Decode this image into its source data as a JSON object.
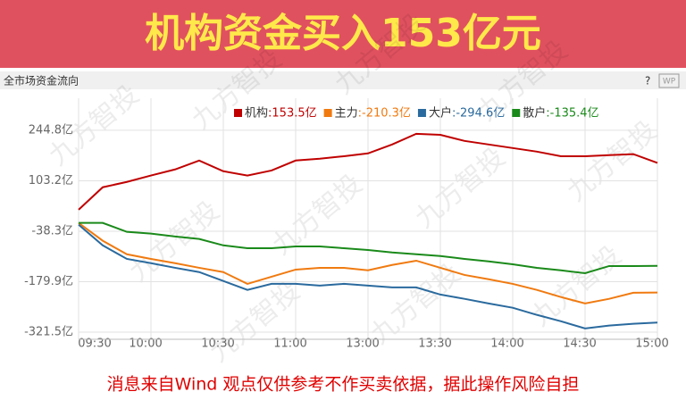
{
  "banner": {
    "title": "机构资金买入153亿元"
  },
  "panel": {
    "title": "全市场资金流向",
    "help": "?",
    "badge": "WP"
  },
  "watermark": "九方智投",
  "footer": "消息来自Wind  观点仅供参考不作买卖依据，据此操作风险自担",
  "chart_data": {
    "type": "line",
    "x": [
      0,
      10,
      20,
      30,
      40,
      50,
      60,
      70,
      80,
      90,
      100,
      110,
      120,
      130,
      140,
      150,
      160,
      170,
      180,
      190,
      200,
      210,
      220,
      230,
      240
    ],
    "xlim": [
      0,
      240
    ],
    "xticks": [
      {
        "value": 0,
        "label": "09:30"
      },
      {
        "value": 30,
        "label": "10:00"
      },
      {
        "value": 60,
        "label": "10:30"
      },
      {
        "value": 90,
        "label": "11:00"
      },
      {
        "value": 120,
        "label": "13:00"
      },
      {
        "value": 150,
        "label": "13:30"
      },
      {
        "value": 180,
        "label": "14:00"
      },
      {
        "value": 210,
        "label": "14:30"
      },
      {
        "value": 240,
        "label": "15:00"
      }
    ],
    "ylim": [
      -341.5,
      334.8
    ],
    "yticks": [
      {
        "value": 244.8,
        "label": "244.8亿"
      },
      {
        "value": 103.2,
        "label": "103.2亿"
      },
      {
        "value": -38.3,
        "label": "-38.3亿"
      },
      {
        "value": -179.9,
        "label": "-179.9亿"
      },
      {
        "value": -321.5,
        "label": "-321.5亿"
      }
    ],
    "grid": true,
    "series": [
      {
        "name": "机构",
        "label": ":153.5亿",
        "color": "#c00000",
        "values": [
          22,
          85,
          100,
          118,
          135,
          160,
          130,
          118,
          132,
          160,
          165,
          172,
          180,
          205,
          235,
          232,
          215,
          205,
          195,
          185,
          172,
          172,
          175,
          178,
          153.5
        ]
      },
      {
        "name": "主力",
        "label": ":-210.3亿",
        "color": "#f07a10",
        "values": [
          -15,
          -65,
          -103,
          -116,
          -128,
          -141,
          -153,
          -186,
          -166,
          -146,
          -141,
          -141,
          -148,
          -133,
          -121,
          -141,
          -161,
          -173,
          -186,
          -203,
          -223,
          -241,
          -228,
          -211,
          -210.3
        ]
      },
      {
        "name": "大户",
        "label": ":-294.6亿",
        "color": "#2a6a9e",
        "values": [
          -20,
          -78,
          -116,
          -128,
          -141,
          -153,
          -178,
          -203,
          -186,
          -186,
          -191,
          -186,
          -191,
          -196,
          -196,
          -216,
          -228,
          -241,
          -253,
          -273,
          -291,
          -311,
          -303,
          -298,
          -294.6
        ]
      },
      {
        "name": "散户",
        "label": ":-135.4亿",
        "color": "#1a8a1a",
        "values": [
          -15,
          -15,
          -40,
          -45,
          -53,
          -60,
          -78,
          -86,
          -86,
          -81,
          -81,
          -86,
          -91,
          -98,
          -103,
          -108,
          -116,
          -123,
          -131,
          -141,
          -148,
          -156,
          -136,
          -136,
          -135.4
        ]
      }
    ]
  }
}
